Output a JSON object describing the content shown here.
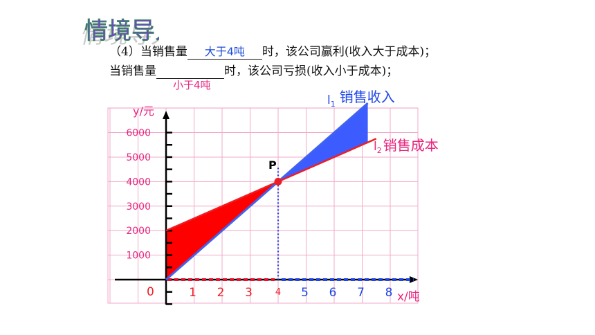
{
  "heading": {
    "text": "情境导入"
  },
  "question": {
    "line1_prefix": "（4）当销售量",
    "line1_answer": "大于4吨",
    "line1_suffix": "时，该公司赢利(收入大于成本)；",
    "line2_prefix": "当销售量",
    "line2_suffix": "时，该公司亏损(收入小于成本)；",
    "line2_answer": "小于4吨"
  },
  "chart_data": {
    "type": "line",
    "xlabel": "x/吨",
    "ylabel": "y/元",
    "origin_label": "0",
    "x_ticks": [
      "1",
      "2",
      "3",
      "4",
      "5",
      "6",
      "7",
      "8"
    ],
    "y_ticks": [
      "1000",
      "2000",
      "3000",
      "4000",
      "5000",
      "6000"
    ],
    "xlim": [
      0,
      9
    ],
    "ylim": [
      0,
      6600
    ],
    "series": [
      {
        "name": "l₁ 销售收入",
        "label_main": "l",
        "label_sub": "1",
        "label_text": "销售收入",
        "x": [
          0,
          7.2
        ],
        "y": [
          0,
          7200
        ],
        "color": "#3f63f0"
      },
      {
        "name": "l₂ 销售成本",
        "label_main": "l",
        "label_sub": "2",
        "label_text": "销售成本",
        "x": [
          0,
          7.5
        ],
        "y": [
          2000,
          5750
        ],
        "color": "#ee1d23"
      }
    ],
    "intersection": {
      "label": "P",
      "x": 4,
      "y": 4000
    },
    "colors": {
      "loss": "#ff0000",
      "profit": "#3d5cff",
      "left_ticks": "#e8102e",
      "right_ticks": "#1f44e8",
      "grid": "#f0a8c8"
    }
  }
}
